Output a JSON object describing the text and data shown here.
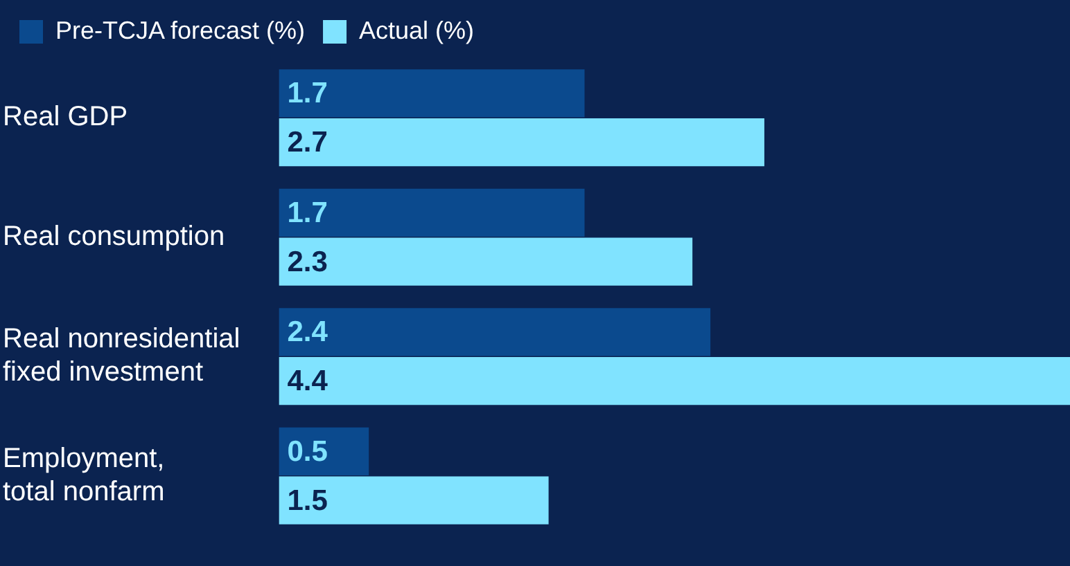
{
  "chart_data": {
    "type": "bar",
    "orientation": "horizontal",
    "categories": [
      "Real GDP",
      "Real consumption",
      "Real nonresidential fixed investment",
      "Employment, total nonfarm"
    ],
    "series": [
      {
        "name": "Pre-TCJA forecast (%)",
        "color": "#0b4a8e",
        "values": [
          1.7,
          1.7,
          2.4,
          0.5
        ]
      },
      {
        "name": "Actual (%)",
        "color": "#80e3ff",
        "values": [
          2.7,
          2.3,
          4.4,
          1.5
        ]
      }
    ],
    "data_labels": true,
    "legend": "top left",
    "tick_labels": "y"
  }
}
